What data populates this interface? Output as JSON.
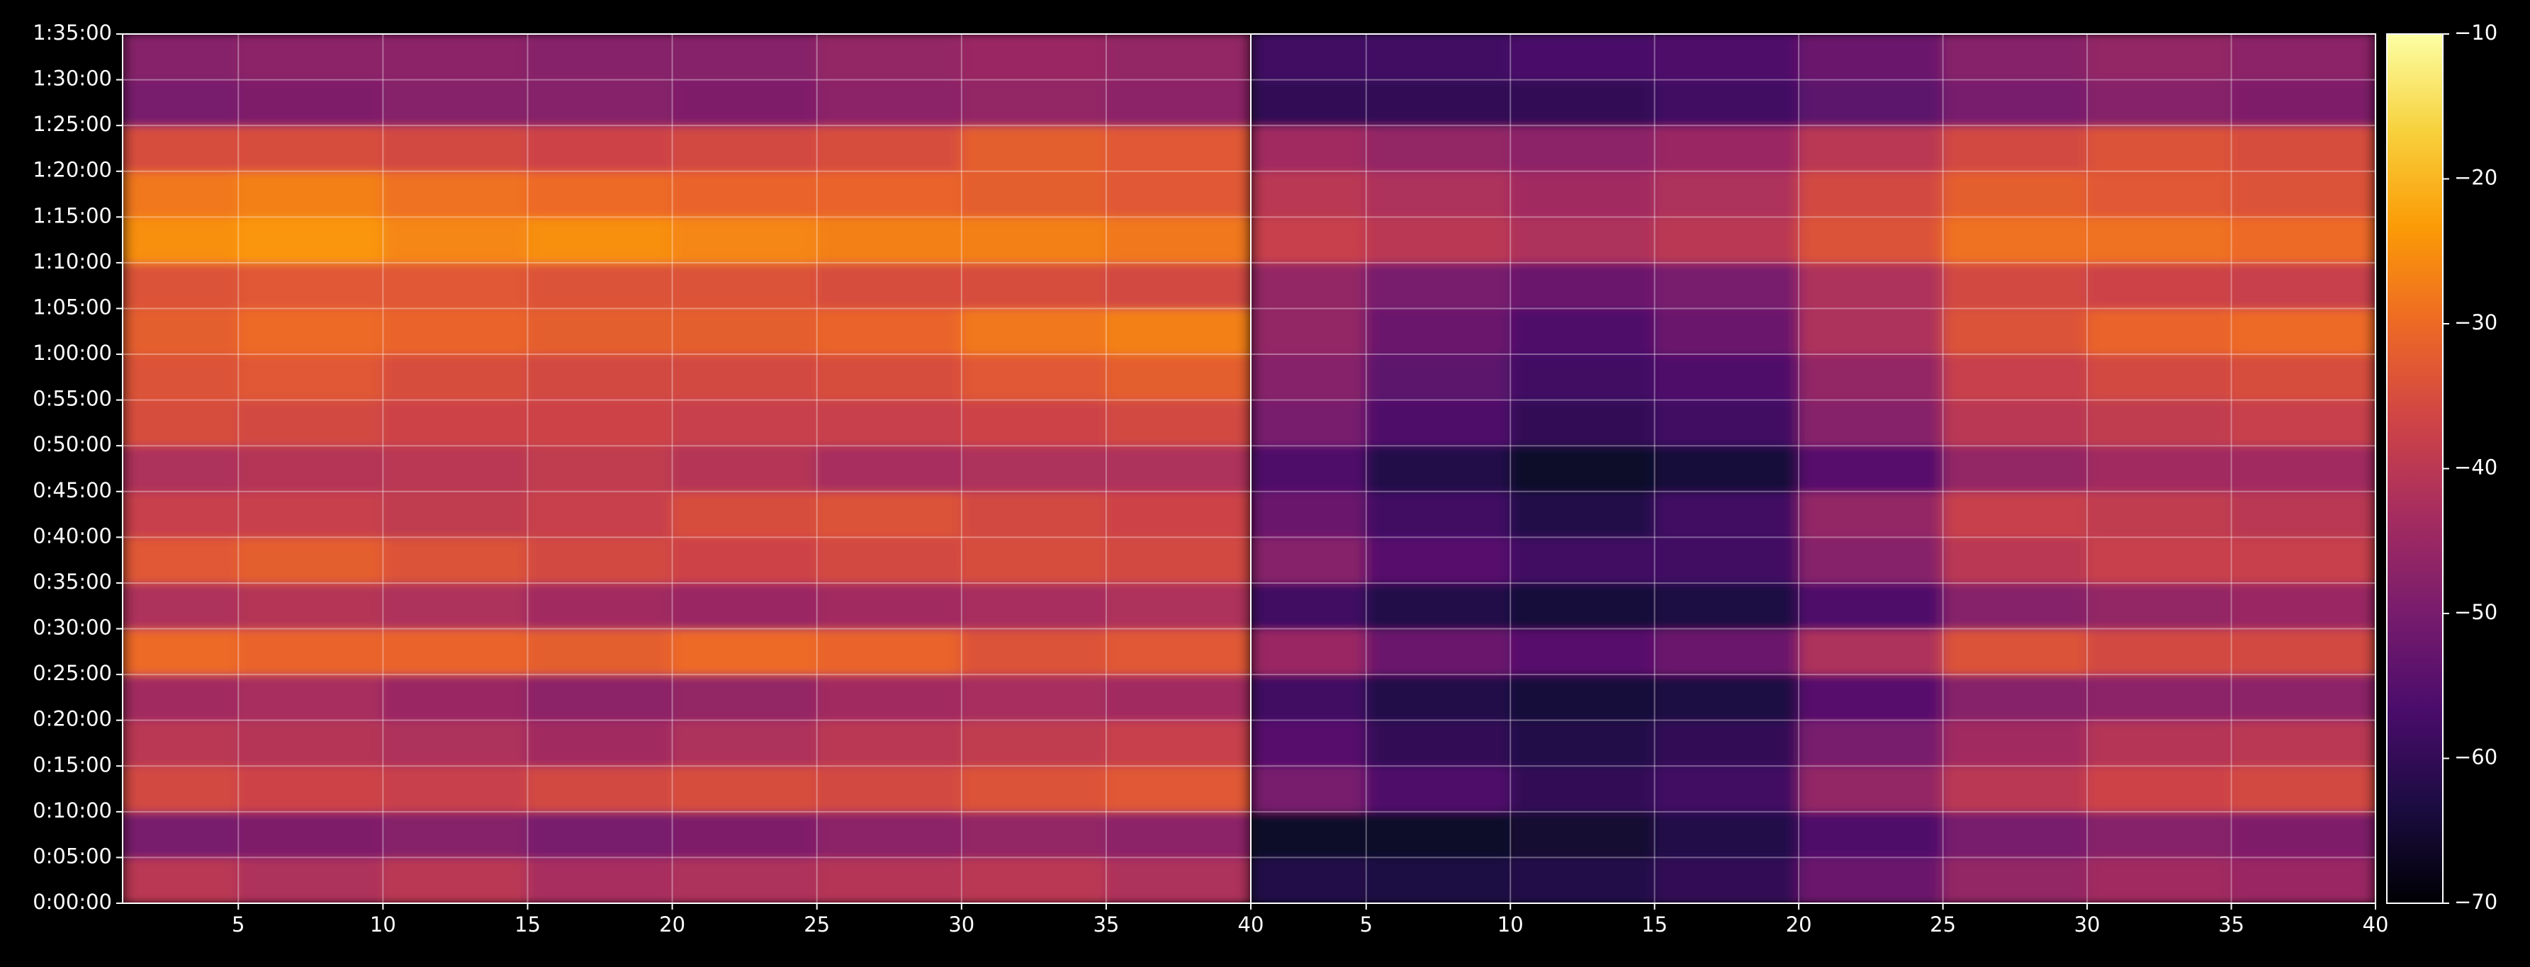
{
  "chart_data": [
    {
      "type": "heatmap",
      "xlim": [
        1,
        40
      ],
      "xticks": [
        5,
        10,
        15,
        20,
        25,
        30,
        35,
        40
      ],
      "ylim": [
        0,
        5700
      ],
      "yticks": [
        {
          "value": 0,
          "label": "0:00:00"
        },
        {
          "value": 300,
          "label": "0:05:00"
        },
        {
          "value": 600,
          "label": "0:10:00"
        },
        {
          "value": 900,
          "label": "0:15:00"
        },
        {
          "value": 1200,
          "label": "0:20:00"
        },
        {
          "value": 1500,
          "label": "0:25:00"
        },
        {
          "value": 1800,
          "label": "0:30:00"
        },
        {
          "value": 2100,
          "label": "0:35:00"
        },
        {
          "value": 2400,
          "label": "0:40:00"
        },
        {
          "value": 2700,
          "label": "0:45:00"
        },
        {
          "value": 3000,
          "label": "0:50:00"
        },
        {
          "value": 3300,
          "label": "0:55:00"
        },
        {
          "value": 3600,
          "label": "1:00:00"
        },
        {
          "value": 3900,
          "label": "1:05:00"
        },
        {
          "value": 4200,
          "label": "1:10:00"
        },
        {
          "value": 4500,
          "label": "1:15:00"
        },
        {
          "value": 4800,
          "label": "1:20:00"
        },
        {
          "value": 5100,
          "label": "1:25:00"
        },
        {
          "value": 5400,
          "label": "1:30:00"
        },
        {
          "value": 5700,
          "label": "1:35:00"
        }
      ],
      "grid": true,
      "x_edges": [
        1,
        5,
        10,
        15,
        20,
        25,
        30,
        35,
        40
      ],
      "y_edges": [
        0,
        300,
        600,
        900,
        1200,
        1500,
        1800,
        2100,
        2400,
        2700,
        3000,
        3300,
        3600,
        3900,
        4200,
        4500,
        4800,
        5100,
        5400,
        5700
      ],
      "values": [
        [
          -40,
          -42,
          -40,
          -43,
          -42,
          -41,
          -40,
          -42
        ],
        [
          -50,
          -49,
          -48,
          -50,
          -49,
          -47,
          -46,
          -47
        ],
        [
          -36,
          -37,
          -38,
          -36,
          -35,
          -36,
          -34,
          -33
        ],
        [
          -40,
          -41,
          -42,
          -44,
          -42,
          -40,
          -39,
          -38
        ],
        [
          -44,
          -43,
          -45,
          -47,
          -46,
          -44,
          -43,
          -44
        ],
        [
          -30,
          -31,
          -31,
          -32,
          -30,
          -31,
          -34,
          -33
        ],
        [
          -42,
          -41,
          -42,
          -44,
          -45,
          -44,
          -43,
          -42
        ],
        [
          -33,
          -32,
          -34,
          -36,
          -37,
          -36,
          -35,
          -36
        ],
        [
          -38,
          -38,
          -39,
          -38,
          -35,
          -34,
          -36,
          -37
        ],
        [
          -42,
          -41,
          -40,
          -39,
          -41,
          -43,
          -42,
          -42
        ],
        [
          -35,
          -36,
          -37,
          -37,
          -38,
          -38,
          -37,
          -36
        ],
        [
          -34,
          -33,
          -35,
          -36,
          -36,
          -35,
          -33,
          -32
        ],
        [
          -32,
          -30,
          -31,
          -32,
          -32,
          -31,
          -28,
          -27
        ],
        [
          -34,
          -33,
          -33,
          -34,
          -34,
          -35,
          -35,
          -36
        ],
        [
          -25,
          -24,
          -26,
          -25,
          -26,
          -27,
          -27,
          -28
        ],
        [
          -28,
          -27,
          -29,
          -30,
          -31,
          -31,
          -32,
          -33
        ],
        [
          -35,
          -35,
          -36,
          -37,
          -36,
          -35,
          -32,
          -33
        ],
        [
          -50,
          -49,
          -48,
          -48,
          -49,
          -47,
          -46,
          -47
        ],
        [
          -48,
          -47,
          -47,
          -48,
          -48,
          -46,
          -45,
          -46
        ]
      ]
    },
    {
      "type": "heatmap",
      "xlim": [
        1,
        40
      ],
      "xticks": [
        5,
        10,
        15,
        20,
        25,
        30,
        35,
        40
      ],
      "ylim": [
        0,
        5700
      ],
      "grid": true,
      "x_edges": [
        1,
        5,
        10,
        15,
        20,
        25,
        30,
        35,
        40
      ],
      "y_edges": [
        0,
        300,
        600,
        900,
        1200,
        1500,
        1800,
        2100,
        2400,
        2700,
        3000,
        3300,
        3600,
        3900,
        4200,
        4500,
        4800,
        5100,
        5400,
        5700
      ],
      "values": [
        [
          -62,
          -63,
          -62,
          -60,
          -52,
          -46,
          -44,
          -45
        ],
        [
          -66,
          -66,
          -65,
          -62,
          -56,
          -50,
          -48,
          -49
        ],
        [
          -50,
          -56,
          -60,
          -58,
          -46,
          -40,
          -37,
          -36
        ],
        [
          -55,
          -60,
          -62,
          -60,
          -50,
          -44,
          -41,
          -40
        ],
        [
          -58,
          -62,
          -64,
          -63,
          -55,
          -48,
          -47,
          -47
        ],
        [
          -45,
          -52,
          -55,
          -52,
          -42,
          -34,
          -36,
          -36
        ],
        [
          -58,
          -62,
          -64,
          -63,
          -56,
          -48,
          -46,
          -45
        ],
        [
          -48,
          -55,
          -58,
          -58,
          -48,
          -40,
          -38,
          -38
        ],
        [
          -52,
          -58,
          -62,
          -58,
          -46,
          -38,
          -39,
          -40
        ],
        [
          -56,
          -62,
          -66,
          -64,
          -55,
          -46,
          -44,
          -44
        ],
        [
          -50,
          -56,
          -60,
          -58,
          -48,
          -40,
          -39,
          -38
        ],
        [
          -48,
          -54,
          -58,
          -56,
          -46,
          -38,
          -36,
          -35
        ],
        [
          -46,
          -52,
          -56,
          -52,
          -42,
          -34,
          -31,
          -30
        ],
        [
          -46,
          -50,
          -52,
          -50,
          -42,
          -36,
          -37,
          -38
        ],
        [
          -38,
          -40,
          -42,
          -40,
          -34,
          -29,
          -29,
          -30
        ],
        [
          -40,
          -42,
          -44,
          -42,
          -36,
          -32,
          -33,
          -34
        ],
        [
          -44,
          -46,
          -47,
          -45,
          -40,
          -36,
          -34,
          -35
        ],
        [
          -60,
          -60,
          -60,
          -58,
          -54,
          -50,
          -48,
          -49
        ],
        [
          -58,
          -58,
          -57,
          -56,
          -52,
          -48,
          -46,
          -47
        ]
      ]
    }
  ],
  "colorbar": {
    "lim": [
      -70,
      -10
    ],
    "ticks": [
      {
        "value": -70,
        "label": "−70"
      },
      {
        "value": -60,
        "label": "−60"
      },
      {
        "value": -50,
        "label": "−50"
      },
      {
        "value": -40,
        "label": "−40"
      },
      {
        "value": -30,
        "label": "−30"
      },
      {
        "value": -20,
        "label": "−20"
      },
      {
        "value": -10,
        "label": "−10"
      }
    ],
    "colormap": [
      "#000004",
      "#1b0c41",
      "#4a0c6b",
      "#781c6d",
      "#a52c60",
      "#cf4446",
      "#ed6925",
      "#fb9b06",
      "#f7d13d",
      "#fcffa4"
    ]
  }
}
